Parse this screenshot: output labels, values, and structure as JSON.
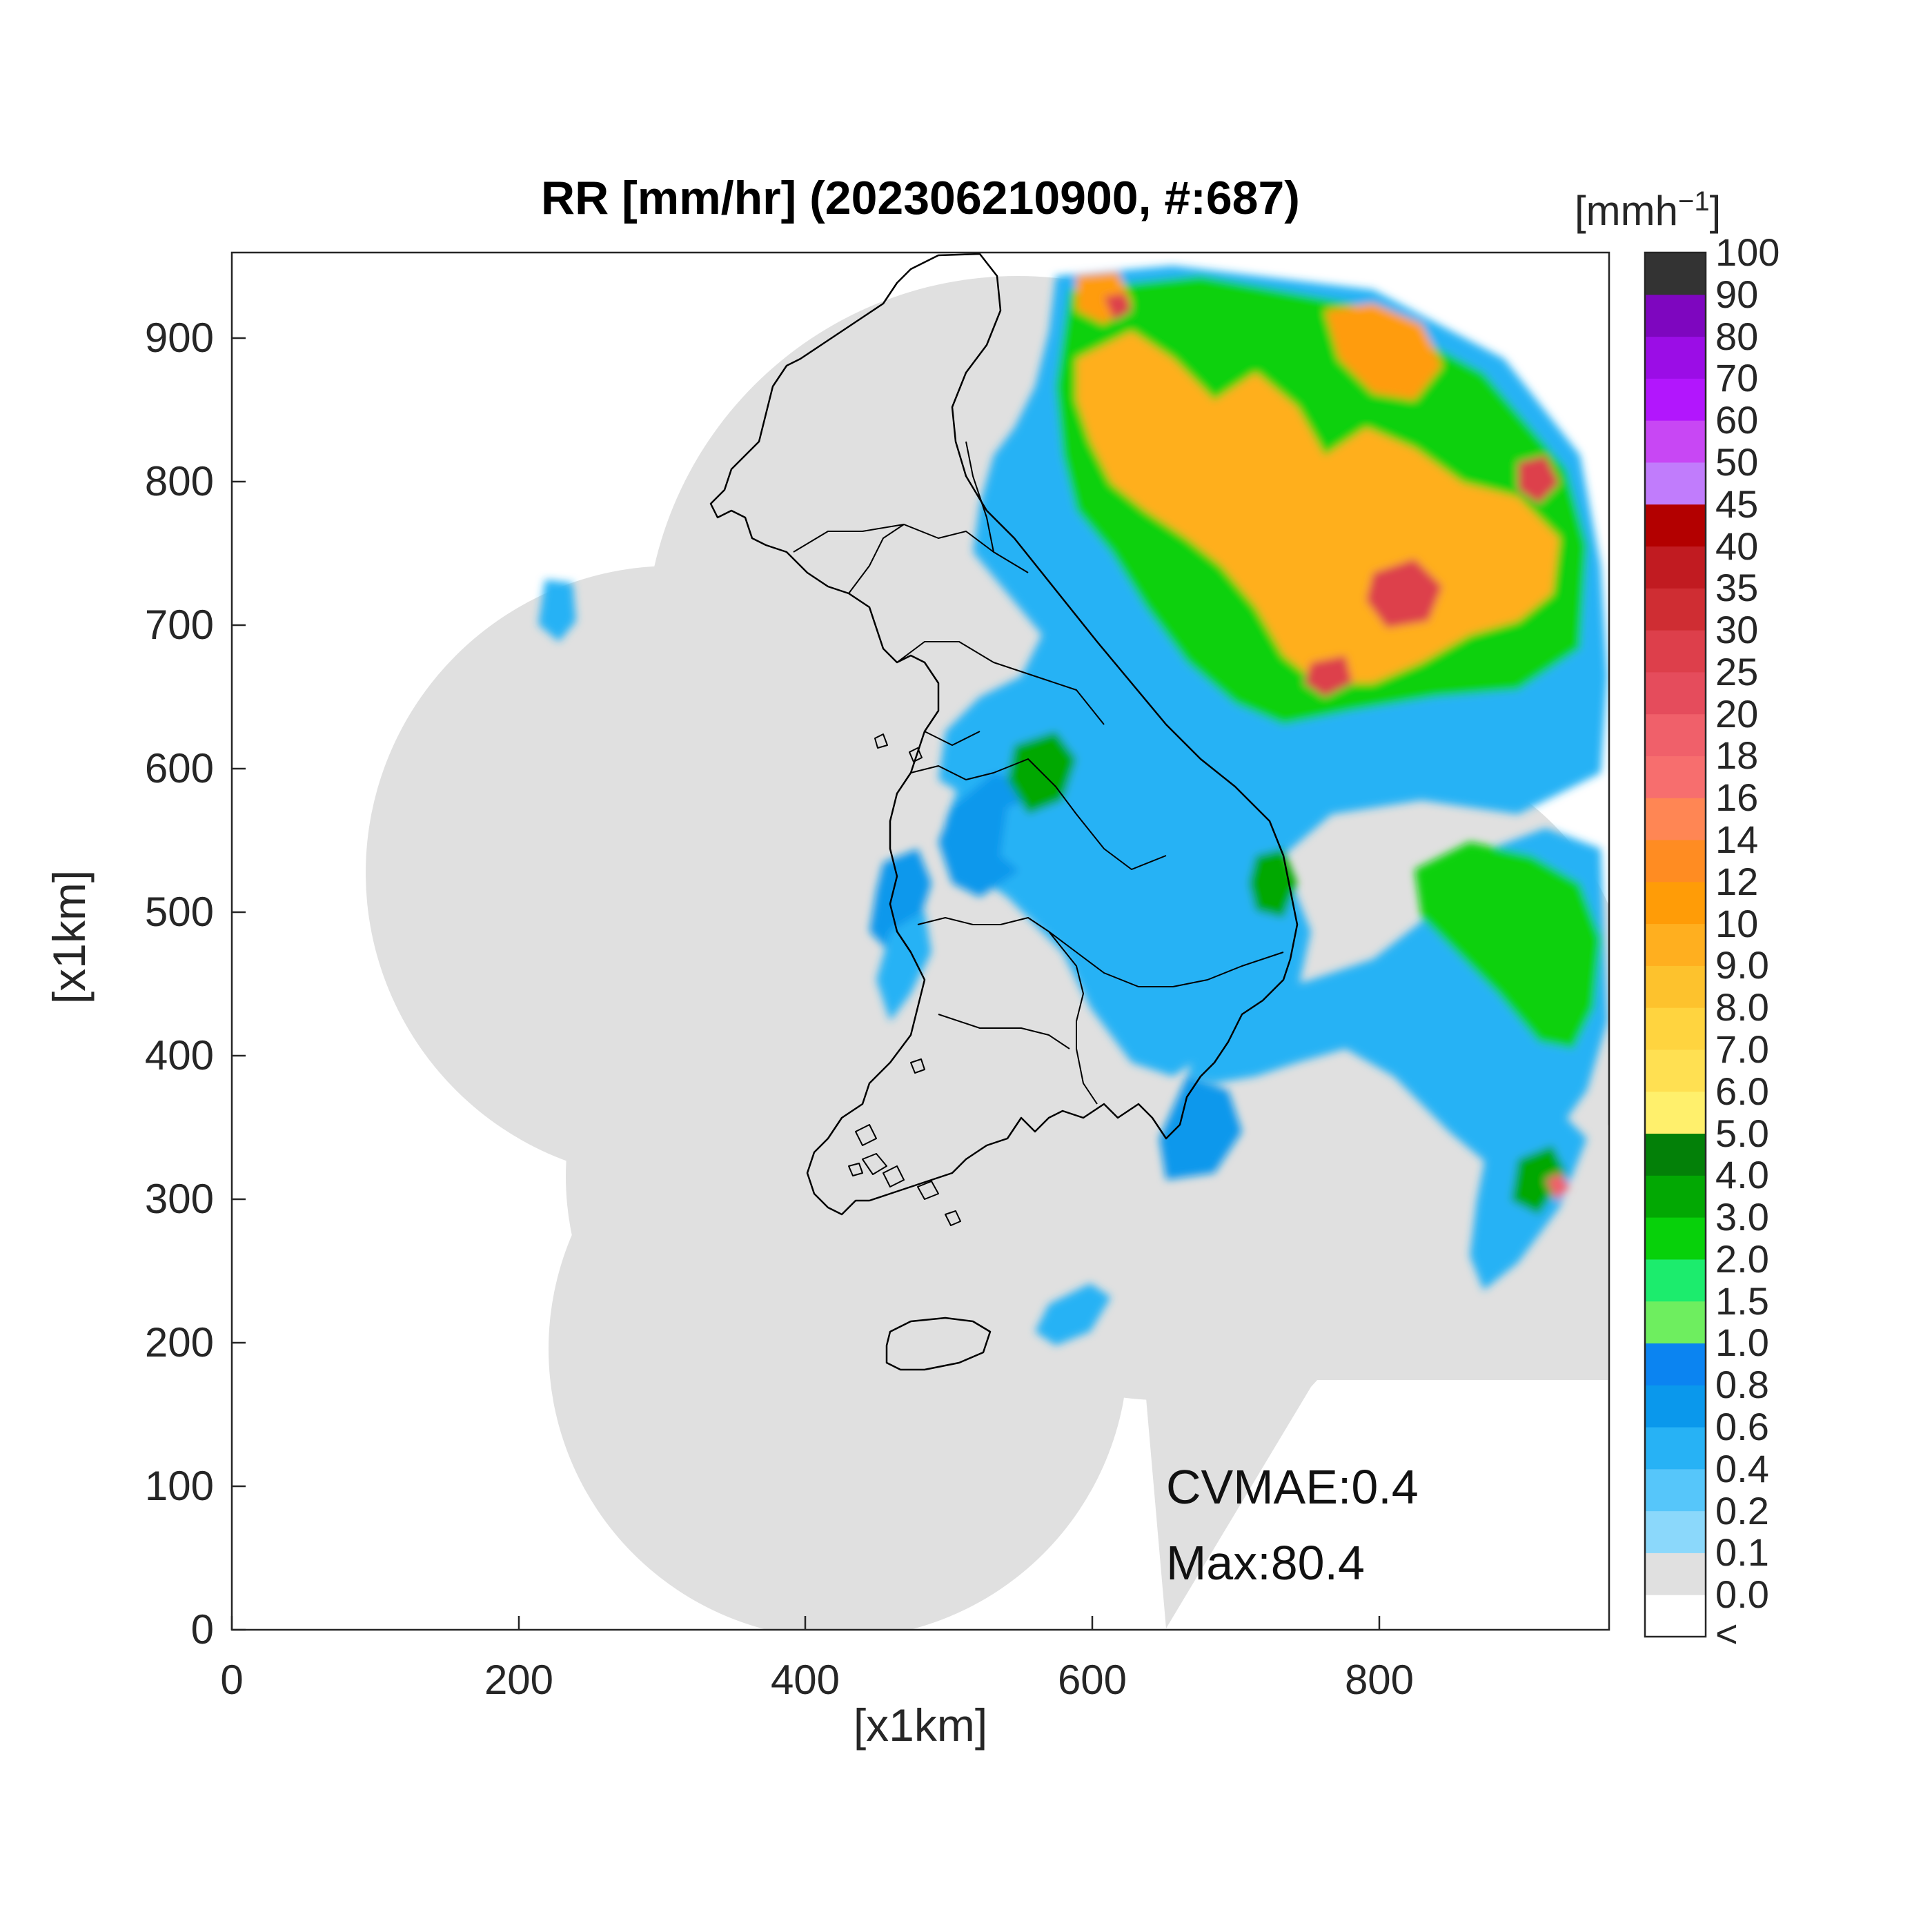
{
  "title": "RR [mm/hr] (202306210900, #:687)",
  "x_axis": {
    "label": "[x1km]",
    "ticks": [
      "0",
      "200",
      "400",
      "600",
      "800"
    ],
    "range": [
      0,
      960
    ]
  },
  "y_axis": {
    "label": "[x1km]",
    "ticks": [
      "0",
      "100",
      "200",
      "300",
      "400",
      "500",
      "600",
      "700",
      "800",
      "900"
    ],
    "range": [
      0,
      960
    ]
  },
  "stats": {
    "cvmae": "CVMAE:0.4",
    "max": "Max:80.4"
  },
  "colorbar": {
    "unit": "[mmh",
    "unit_exponent": "−1",
    "unit_close": "]",
    "levels": [
      {
        "label": "<",
        "color": "#ffffff"
      },
      {
        "label": "0.0",
        "color": "#e0e0e0"
      },
      {
        "label": "0.1",
        "color": "#8bd8fb"
      },
      {
        "label": "0.2",
        "color": "#56c6fa"
      },
      {
        "label": "0.4",
        "color": "#27b2f5"
      },
      {
        "label": "0.6",
        "color": "#0a98ec"
      },
      {
        "label": "0.8",
        "color": "#0b84f1"
      },
      {
        "label": "1.0",
        "color": "#6eee5f"
      },
      {
        "label": "1.5",
        "color": "#1cec6d"
      },
      {
        "label": "2.0",
        "color": "#07d10a"
      },
      {
        "label": "3.0",
        "color": "#02a803"
      },
      {
        "label": "4.0",
        "color": "#038008"
      },
      {
        "label": "5.0",
        "color": "#fff06c"
      },
      {
        "label": "6.0",
        "color": "#ffe052"
      },
      {
        "label": "7.0",
        "color": "#ffd43f"
      },
      {
        "label": "8.0",
        "color": "#fdc22d"
      },
      {
        "label": "9.0",
        "color": "#ffaf1f"
      },
      {
        "label": "10",
        "color": "#ff9c07"
      },
      {
        "label": "12",
        "color": "#ff8c22"
      },
      {
        "label": "14",
        "color": "#ff8654"
      },
      {
        "label": "16",
        "color": "#f76e6e"
      },
      {
        "label": "18",
        "color": "#f0606a"
      },
      {
        "label": "20",
        "color": "#e54c5c"
      },
      {
        "label": "25",
        "color": "#dd3f4b"
      },
      {
        "label": "30",
        "color": "#cf2d33"
      },
      {
        "label": "35",
        "color": "#c11b21"
      },
      {
        "label": "40",
        "color": "#b30000"
      },
      {
        "label": "45",
        "color": "#c17cfc"
      },
      {
        "label": "50",
        "color": "#c847f4"
      },
      {
        "label": "60",
        "color": "#b216fd"
      },
      {
        "label": "70",
        "color": "#9b0de6"
      },
      {
        "label": "80",
        "color": "#7e06bf"
      },
      {
        "label": "90",
        "color": "#333333"
      },
      {
        "label": "100",
        "color": null
      }
    ]
  }
}
